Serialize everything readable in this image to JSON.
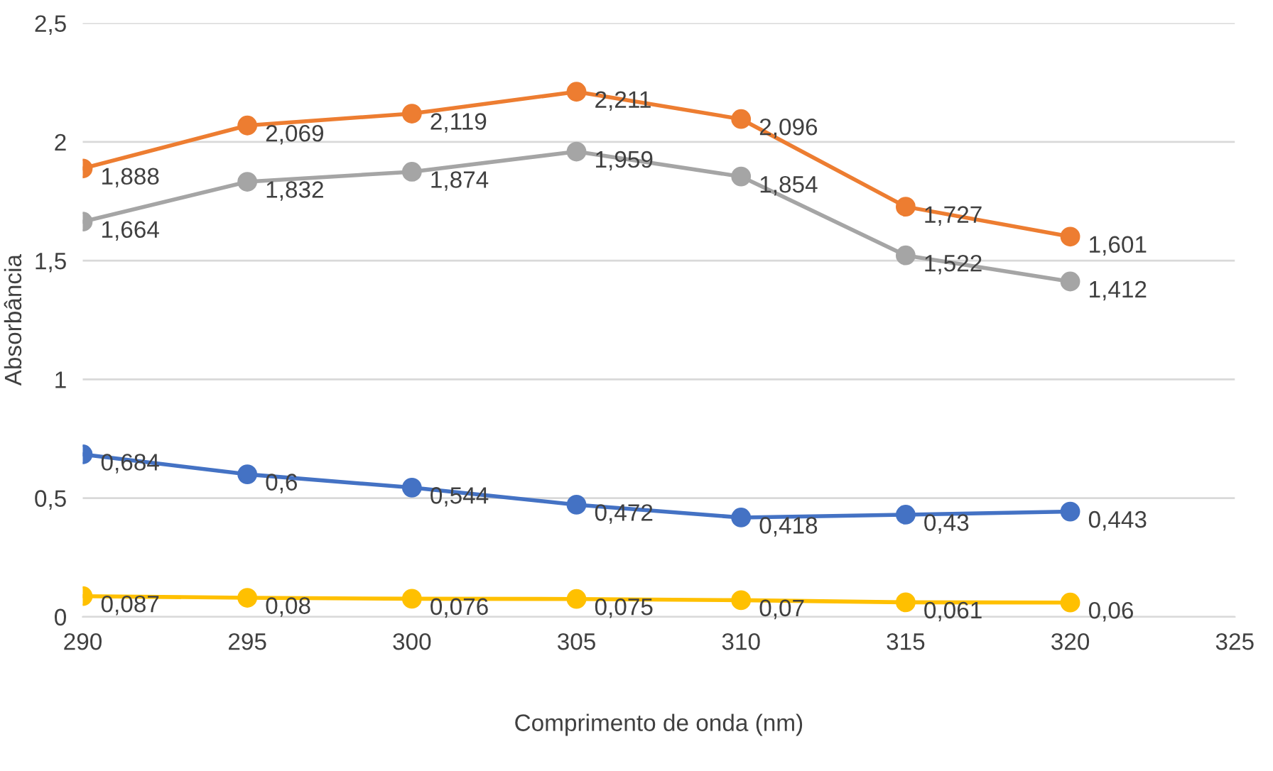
{
  "chart_data": {
    "type": "line",
    "xlabel": "Comprimento de onda (nm)",
    "ylabel": "Absorbância",
    "x": [
      290,
      295,
      300,
      305,
      310,
      315,
      320
    ],
    "series": [
      {
        "color": "#ed7d31",
        "values": [
          1.888,
          2.069,
          2.119,
          2.211,
          2.096,
          1.727,
          1.601
        ],
        "value_labels": [
          "1,888",
          "2,069",
          "2,119",
          "2,211",
          "2,096",
          "1,727",
          "1,601"
        ]
      },
      {
        "color": "#a5a5a5",
        "values": [
          1.664,
          1.832,
          1.874,
          1.959,
          1.854,
          1.522,
          1.412
        ],
        "value_labels": [
          "1,664",
          "1,832",
          "1,874",
          "1,959",
          "1,854",
          "1,522",
          "1,412"
        ]
      },
      {
        "color": "#4472c4",
        "values": [
          0.684,
          0.6,
          0.544,
          0.472,
          0.418,
          0.43,
          0.443
        ],
        "value_labels": [
          "0,684",
          "0,6",
          "0,544",
          "0,472",
          "0,418",
          "0,43",
          "0,443"
        ]
      },
      {
        "color": "#ffc000",
        "values": [
          0.087,
          0.08,
          0.076,
          0.075,
          0.07,
          0.061,
          0.06
        ],
        "value_labels": [
          "0,087",
          "0,08",
          "0,076",
          "0,075",
          "0,07",
          "0,061",
          "0,06"
        ]
      }
    ],
    "xlim": [
      290,
      325
    ],
    "xticks": [
      290,
      295,
      300,
      305,
      310,
      315,
      320,
      325
    ],
    "ylim": [
      0,
      2.5
    ],
    "yticks": [
      0,
      {
        "value": 0.5,
        "label": "0,5"
      },
      1,
      {
        "value": 1.5,
        "label": "1,5"
      },
      2,
      {
        "value": 2.5,
        "label": "2,5"
      }
    ],
    "grid": "y",
    "marker": "circle",
    "line_style": "solid"
  }
}
